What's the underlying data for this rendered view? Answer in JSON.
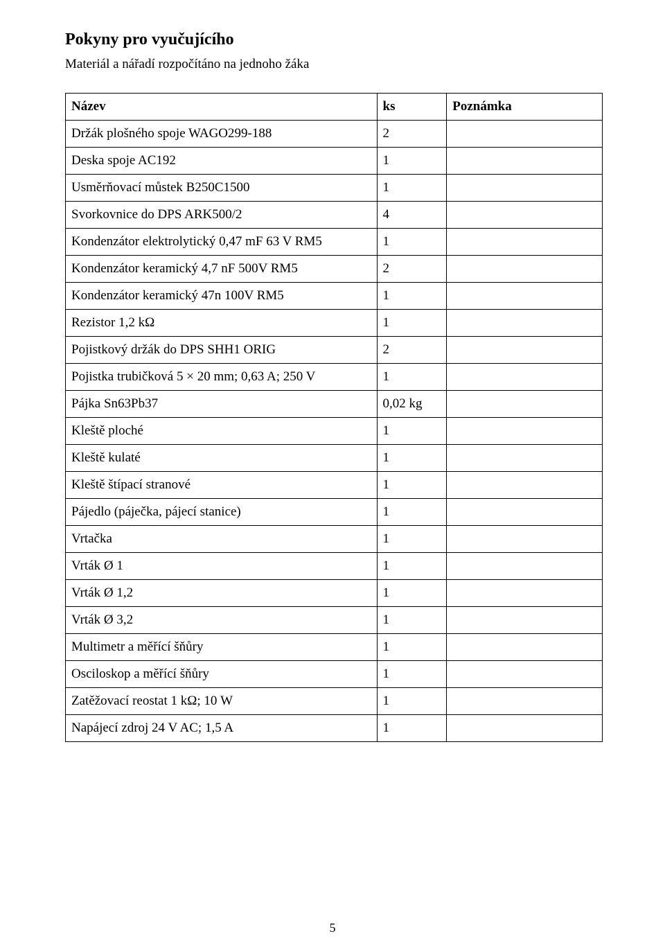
{
  "heading": "Pokyny pro vyučujícího",
  "subheading": "Materiál a nářadí rozpočítáno na jednoho žáka",
  "table": {
    "headers": {
      "name": "Název",
      "qty": "ks",
      "note": "Poznámka"
    },
    "rows": [
      {
        "name": "Držák plošného spoje WAGO299-188",
        "qty": "2",
        "note": ""
      },
      {
        "name": "Deska spoje AC192",
        "qty": "1",
        "note": ""
      },
      {
        "name": "Usměrňovací můstek B250C1500",
        "qty": "1",
        "note": ""
      },
      {
        "name": "Svorkovnice do DPS ARK500/2",
        "qty": "4",
        "note": ""
      },
      {
        "name": "Kondenzátor elektrolytický 0,47 mF 63 V RM5",
        "qty": "1",
        "note": ""
      },
      {
        "name": "Kondenzátor keramický 4,7 nF 500V RM5",
        "qty": "2",
        "note": ""
      },
      {
        "name": "Kondenzátor keramický 47n 100V RM5",
        "qty": "1",
        "note": ""
      },
      {
        "name": "Rezistor 1,2 kΩ",
        "qty": "1",
        "note": ""
      },
      {
        "name": "Pojistkový držák do DPS SHH1 ORIG",
        "qty": "2",
        "note": ""
      },
      {
        "name": "Pojistka trubičková 5 × 20 mm; 0,63 A; 250 V",
        "qty": "1",
        "note": ""
      },
      {
        "name": "Pájka Sn63Pb37",
        "qty": "0,02 kg",
        "note": ""
      },
      {
        "name": "Kleště ploché",
        "qty": "1",
        "note": ""
      },
      {
        "name": "Kleště kulaté",
        "qty": "1",
        "note": ""
      },
      {
        "name": "Kleště štípací stranové",
        "qty": "1",
        "note": ""
      },
      {
        "name": "Pájedlo (páječka, pájecí stanice)",
        "qty": "1",
        "note": ""
      },
      {
        "name": "Vrtačka",
        "qty": "1",
        "note": ""
      },
      {
        "name": "Vrták Ø 1",
        "qty": "1",
        "note": ""
      },
      {
        "name": "Vrták Ø 1,2",
        "qty": "1",
        "note": ""
      },
      {
        "name": "Vrták Ø 3,2",
        "qty": "1",
        "note": ""
      },
      {
        "name": "Multimetr a měřící šňůry",
        "qty": "1",
        "note": ""
      },
      {
        "name": "Osciloskop a měřící šňůry",
        "qty": "1",
        "note": ""
      },
      {
        "name": "Zatěžovací reostat 1 kΩ; 10 W",
        "qty": "1",
        "note": ""
      },
      {
        "name": "Napájecí zdroj 24 V AC; 1,5 A",
        "qty": "1",
        "note": ""
      }
    ]
  },
  "page_number": "5",
  "colors": {
    "text": "#000000",
    "border": "#000000",
    "background": "#ffffff"
  },
  "typography": {
    "heading_fontsize_pt": 18,
    "body_fontsize_pt": 14,
    "font_family": "Times New Roman"
  }
}
